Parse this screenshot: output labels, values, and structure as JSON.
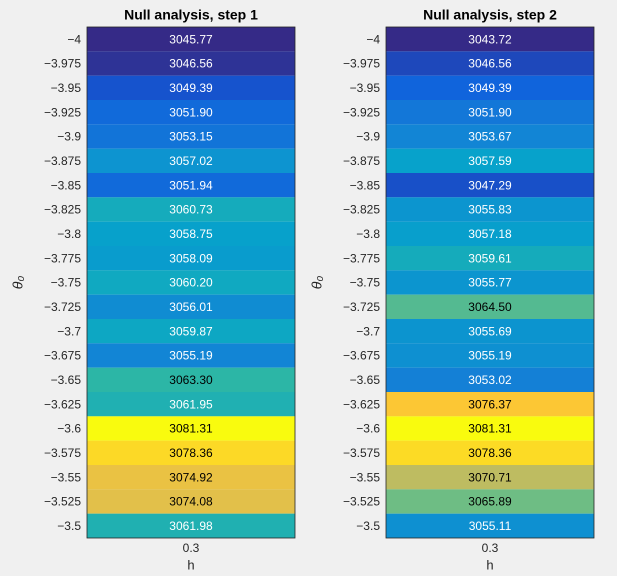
{
  "chart_data": [
    {
      "type": "heatmap",
      "title": "Null analysis, step 1",
      "xlabel": "h",
      "ylabel": "θ₀",
      "x_categories": [
        "0.3"
      ],
      "categories": [
        "−4",
        "−3.975",
        "−3.95",
        "−3.925",
        "−3.9",
        "−3.875",
        "−3.85",
        "−3.825",
        "−3.8",
        "−3.775",
        "−3.75",
        "−3.725",
        "−3.7",
        "−3.675",
        "−3.65",
        "−3.625",
        "−3.6",
        "−3.575",
        "−3.55",
        "−3.525",
        "−3.5"
      ],
      "values": [
        3045.77,
        3046.56,
        3049.39,
        3051.9,
        3053.15,
        3057.02,
        3051.94,
        3060.73,
        3058.75,
        3058.09,
        3060.2,
        3056.01,
        3059.87,
        3055.19,
        3063.3,
        3061.95,
        3081.31,
        3078.36,
        3074.92,
        3074.08,
        3061.98
      ],
      "value_labels": [
        "3045.77",
        "3046.56",
        "3049.39",
        "3051.90",
        "3053.15",
        "3057.02",
        "3051.94",
        "3060.73",
        "3058.75",
        "3058.09",
        "3060.20",
        "3056.01",
        "3059.87",
        "3055.19",
        "3063.30",
        "3061.95",
        "3081.31",
        "3078.36",
        "3074.92",
        "3074.08",
        "3061.98"
      ],
      "colormap": "parula",
      "colormap_reversed": true
    },
    {
      "type": "heatmap",
      "title": "Null analysis, step 2",
      "xlabel": "h",
      "ylabel": "θ₀",
      "x_categories": [
        "0.3"
      ],
      "categories": [
        "−4",
        "−3.975",
        "−3.95",
        "−3.925",
        "−3.9",
        "−3.875",
        "−3.85",
        "−3.825",
        "−3.8",
        "−3.775",
        "−3.75",
        "−3.725",
        "−3.7",
        "−3.675",
        "−3.65",
        "−3.625",
        "−3.6",
        "−3.575",
        "−3.55",
        "−3.525",
        "−3.5"
      ],
      "values": [
        3043.72,
        3046.56,
        3049.39,
        3051.9,
        3053.67,
        3057.59,
        3047.29,
        3055.83,
        3057.18,
        3059.61,
        3055.77,
        3064.5,
        3055.69,
        3055.19,
        3053.02,
        3076.37,
        3081.31,
        3078.36,
        3070.71,
        3065.89,
        3055.11
      ],
      "value_labels": [
        "3043.72",
        "3046.56",
        "3049.39",
        "3051.90",
        "3053.67",
        "3057.59",
        "3047.29",
        "3055.83",
        "3057.18",
        "3059.61",
        "3055.77",
        "3064.50",
        "3055.69",
        "3055.19",
        "3053.02",
        "3076.37",
        "3081.31",
        "3078.36",
        "3070.71",
        "3065.89",
        "3055.11"
      ],
      "colormap": "parula",
      "colormap_reversed": true
    }
  ]
}
